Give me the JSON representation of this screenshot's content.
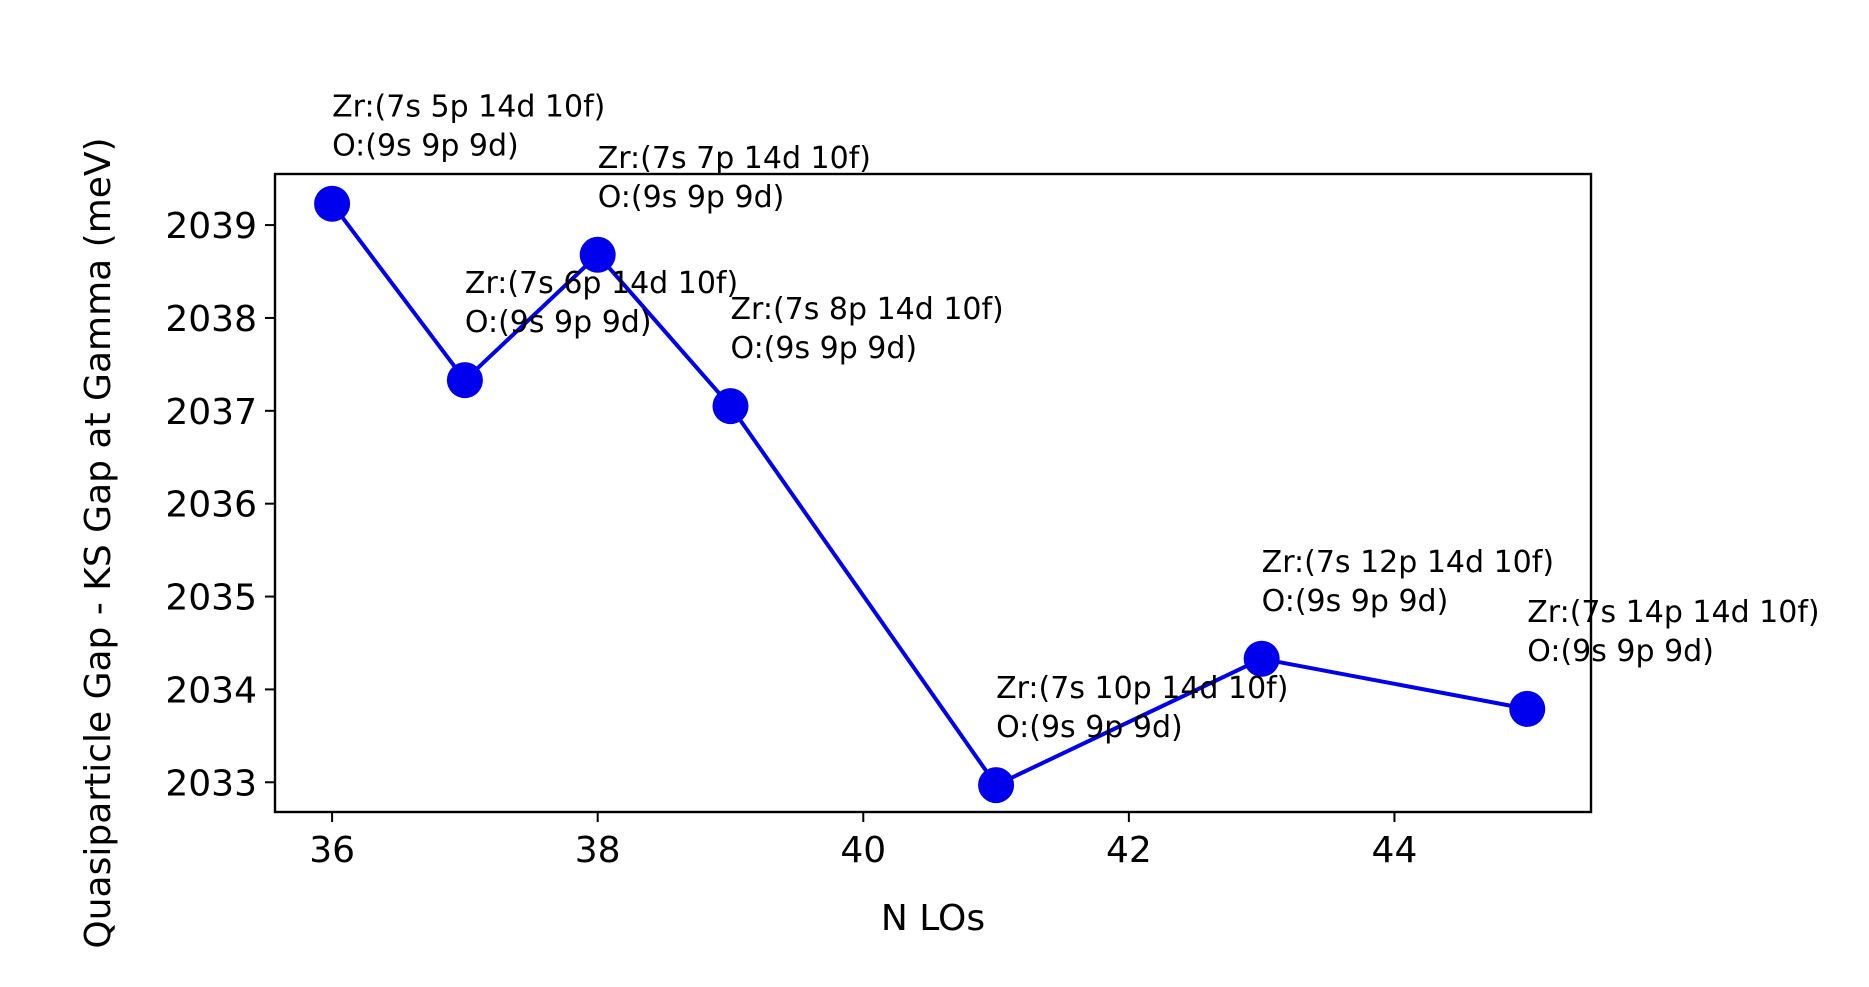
{
  "chart_data": {
    "type": "line",
    "title": "",
    "xlabel": "N LOs",
    "ylabel": "Quasiparticle Gap - KS Gap at Gamma (meV)",
    "xlim": [
      35.57,
      45.48
    ],
    "ylim": [
      2032.68,
      2039.55
    ],
    "x_ticks": [
      36,
      38,
      40,
      42,
      44
    ],
    "y_ticks": [
      2033,
      2034,
      2035,
      2036,
      2037,
      2038,
      2039
    ],
    "grid": false,
    "legend": "none",
    "series": [
      {
        "color": "#0000ee",
        "marker": "circle",
        "x": [
          36,
          37,
          38,
          39,
          41,
          43,
          45
        ],
        "y": [
          2039.23,
          2037.33,
          2038.68,
          2037.05,
          2032.97,
          2034.33,
          2033.79
        ]
      }
    ],
    "annotations": [
      {
        "x": 36,
        "y": 2039.23,
        "line1": "Zr:(7s 5p 14d 10f)",
        "line2": "O:(9s 9p 9d)"
      },
      {
        "x": 37,
        "y": 2037.33,
        "line1": "Zr:(7s 6p 14d 10f)",
        "line2": "O:(9s 9p 9d)"
      },
      {
        "x": 38,
        "y": 2038.68,
        "line1": "Zr:(7s 7p 14d 10f)",
        "line2": "O:(9s 9p 9d)"
      },
      {
        "x": 39,
        "y": 2037.05,
        "line1": "Zr:(7s 8p 14d 10f)",
        "line2": "O:(9s 9p 9d)"
      },
      {
        "x": 41,
        "y": 2032.97,
        "line1": "Zr:(7s 10p 14d 10f)",
        "line2": "O:(9s 9p 9d)"
      },
      {
        "x": 43,
        "y": 2034.33,
        "line1": "Zr:(7s 12p 14d 10f)",
        "line2": "O:(9s 9p 9d)"
      },
      {
        "x": 45,
        "y": 2033.79,
        "line1": "Zr:(7s 14p 14d 10f)",
        "line2": "O:(9s 9p 9d)"
      }
    ]
  }
}
